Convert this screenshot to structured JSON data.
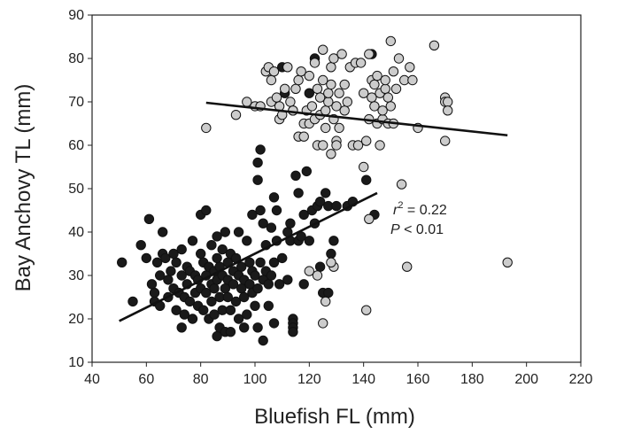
{
  "chart_data": {
    "type": "scatter",
    "title": "",
    "xlabel": "Bluefish FL (mm)",
    "ylabel": "Bay Anchovy TL (mm)",
    "xlim": [
      40,
      220
    ],
    "ylim": [
      10,
      90
    ],
    "xticks": [
      40,
      60,
      80,
      100,
      120,
      140,
      160,
      180,
      200,
      220
    ],
    "yticks": [
      10,
      20,
      30,
      40,
      50,
      60,
      70,
      80,
      90
    ],
    "grid": false,
    "legend": "none",
    "annotation": {
      "r2_label": "r",
      "r2_sup": "2",
      "r2_value": " = 0.22",
      "p_label": "P",
      "p_value": " < 0.01"
    },
    "series": [
      {
        "color": "#1a1a1a",
        "points": [
          [
            51,
            33
          ],
          [
            55,
            24
          ],
          [
            58,
            37
          ],
          [
            60,
            34
          ],
          [
            61,
            43
          ],
          [
            62,
            28
          ],
          [
            63,
            26
          ],
          [
            63,
            24
          ],
          [
            64,
            33
          ],
          [
            65,
            30
          ],
          [
            65,
            23
          ],
          [
            66,
            40
          ],
          [
            66,
            35
          ],
          [
            67,
            34
          ],
          [
            68,
            29
          ],
          [
            68,
            25
          ],
          [
            69,
            31
          ],
          [
            70,
            35
          ],
          [
            70,
            27
          ],
          [
            71,
            33
          ],
          [
            71,
            22
          ],
          [
            72,
            26
          ],
          [
            73,
            36
          ],
          [
            73,
            30
          ],
          [
            73,
            18
          ],
          [
            74,
            25
          ],
          [
            74,
            21
          ],
          [
            75,
            32
          ],
          [
            75,
            28
          ],
          [
            76,
            24
          ],
          [
            76,
            31
          ],
          [
            77,
            20
          ],
          [
            77,
            38
          ],
          [
            78,
            26
          ],
          [
            78,
            30
          ],
          [
            79,
            29
          ],
          [
            79,
            23
          ],
          [
            80,
            35
          ],
          [
            80,
            44
          ],
          [
            80,
            27
          ],
          [
            81,
            33
          ],
          [
            81,
            22
          ],
          [
            82,
            30
          ],
          [
            82,
            26
          ],
          [
            82,
            45
          ],
          [
            83,
            32
          ],
          [
            83,
            20
          ],
          [
            84,
            37
          ],
          [
            84,
            28
          ],
          [
            84,
            24
          ],
          [
            85,
            31
          ],
          [
            85,
            27
          ],
          [
            85,
            21
          ],
          [
            86,
            39
          ],
          [
            86,
            34
          ],
          [
            86,
            29
          ],
          [
            86,
            16
          ],
          [
            87,
            32
          ],
          [
            87,
            25
          ],
          [
            87,
            18
          ],
          [
            88,
            36
          ],
          [
            88,
            30
          ],
          [
            88,
            22
          ],
          [
            89,
            40
          ],
          [
            89,
            27
          ],
          [
            89,
            17
          ],
          [
            90,
            33
          ],
          [
            90,
            29
          ],
          [
            90,
            25
          ],
          [
            91,
            35
          ],
          [
            91,
            22
          ],
          [
            91,
            17
          ],
          [
            92,
            31
          ],
          [
            92,
            28
          ],
          [
            93,
            34
          ],
          [
            93,
            24
          ],
          [
            94,
            30
          ],
          [
            94,
            40
          ],
          [
            94,
            20
          ],
          [
            95,
            27
          ],
          [
            95,
            32
          ],
          [
            96,
            25
          ],
          [
            96,
            29
          ],
          [
            96,
            18
          ],
          [
            97,
            38
          ],
          [
            97,
            21
          ],
          [
            98,
            33
          ],
          [
            98,
            28
          ],
          [
            99,
            26
          ],
          [
            99,
            31
          ],
          [
            99,
            44
          ],
          [
            100,
            23
          ],
          [
            100,
            30
          ],
          [
            101,
            52
          ],
          [
            101,
            56
          ],
          [
            101,
            27
          ],
          [
            101,
            18
          ],
          [
            102,
            59
          ],
          [
            102,
            45
          ],
          [
            102,
            33
          ],
          [
            103,
            29
          ],
          [
            103,
            15
          ],
          [
            103,
            42
          ],
          [
            104,
            31
          ],
          [
            104,
            37
          ],
          [
            105,
            28
          ],
          [
            105,
            23
          ],
          [
            106,
            41
          ],
          [
            106,
            30
          ],
          [
            107,
            48
          ],
          [
            107,
            33
          ],
          [
            107,
            19
          ],
          [
            108,
            45
          ],
          [
            108,
            38
          ],
          [
            109,
            28
          ],
          [
            110,
            78
          ],
          [
            110,
            34
          ],
          [
            111,
            72
          ],
          [
            112,
            40
          ],
          [
            112,
            29
          ],
          [
            113,
            42
          ],
          [
            113,
            38
          ],
          [
            114,
            20
          ],
          [
            114,
            19
          ],
          [
            114,
            18
          ],
          [
            114,
            17
          ],
          [
            115,
            53
          ],
          [
            116,
            38
          ],
          [
            116,
            49
          ],
          [
            117,
            39
          ],
          [
            118,
            44
          ],
          [
            118,
            28
          ],
          [
            119,
            54
          ],
          [
            120,
            38
          ],
          [
            120,
            72
          ],
          [
            121,
            45
          ],
          [
            122,
            80
          ],
          [
            122,
            42
          ],
          [
            123,
            46
          ],
          [
            124,
            47
          ],
          [
            124,
            32
          ],
          [
            125,
            26
          ],
          [
            126,
            49
          ],
          [
            127,
            26
          ],
          [
            127,
            46
          ],
          [
            128,
            35
          ],
          [
            129,
            38
          ],
          [
            130,
            46
          ],
          [
            134,
            46
          ],
          [
            136,
            47
          ],
          [
            141,
            52
          ],
          [
            144,
            44
          ],
          [
            143,
            81
          ]
        ]
      },
      {
        "color": "#cccccc",
        "points": [
          [
            82,
            64
          ],
          [
            93,
            67
          ],
          [
            97,
            70
          ],
          [
            100,
            69
          ],
          [
            102,
            69
          ],
          [
            104,
            77
          ],
          [
            105,
            78
          ],
          [
            106,
            75
          ],
          [
            106,
            70
          ],
          [
            107,
            77
          ],
          [
            108,
            71
          ],
          [
            109,
            66
          ],
          [
            109,
            69
          ],
          [
            110,
            67
          ],
          [
            111,
            73
          ],
          [
            112,
            78
          ],
          [
            113,
            70
          ],
          [
            114,
            68
          ],
          [
            114,
            68
          ],
          [
            115,
            73
          ],
          [
            116,
            62
          ],
          [
            116,
            75
          ],
          [
            117,
            77
          ],
          [
            118,
            62
          ],
          [
            118,
            65
          ],
          [
            119,
            68
          ],
          [
            120,
            76
          ],
          [
            120,
            65
          ],
          [
            121,
            69
          ],
          [
            122,
            79
          ],
          [
            122,
            66
          ],
          [
            123,
            73
          ],
          [
            123,
            60
          ],
          [
            124,
            71
          ],
          [
            124,
            67
          ],
          [
            125,
            82
          ],
          [
            125,
            75
          ],
          [
            125,
            60
          ],
          [
            126,
            64
          ],
          [
            126,
            68
          ],
          [
            127,
            70
          ],
          [
            127,
            72
          ],
          [
            128,
            78
          ],
          [
            128,
            74
          ],
          [
            128,
            58
          ],
          [
            129,
            80
          ],
          [
            129,
            66
          ],
          [
            129,
            32
          ],
          [
            130,
            69
          ],
          [
            130,
            61
          ],
          [
            130,
            60
          ],
          [
            131,
            72
          ],
          [
            131,
            64
          ],
          [
            132,
            81
          ],
          [
            133,
            74
          ],
          [
            133,
            68
          ],
          [
            134,
            70
          ],
          [
            135,
            78
          ],
          [
            136,
            60
          ],
          [
            137,
            79
          ],
          [
            138,
            60
          ],
          [
            139,
            79
          ],
          [
            140,
            72
          ],
          [
            141,
            61
          ],
          [
            142,
            66
          ],
          [
            142,
            81
          ],
          [
            143,
            71
          ],
          [
            143,
            75
          ],
          [
            144,
            69
          ],
          [
            144,
            74
          ],
          [
            145,
            65
          ],
          [
            145,
            76
          ],
          [
            146,
            72
          ],
          [
            146,
            60
          ],
          [
            147,
            66
          ],
          [
            147,
            68
          ],
          [
            148,
            73
          ],
          [
            148,
            75
          ],
          [
            149,
            71
          ],
          [
            149,
            65
          ],
          [
            150,
            69
          ],
          [
            150,
            84
          ],
          [
            151,
            65
          ],
          [
            151,
            77
          ],
          [
            152,
            73
          ],
          [
            153,
            80
          ],
          [
            154,
            51
          ],
          [
            155,
            75
          ],
          [
            156,
            32
          ],
          [
            157,
            78
          ],
          [
            158,
            75
          ],
          [
            160,
            64
          ],
          [
            166,
            83
          ],
          [
            170,
            71
          ],
          [
            170,
            70
          ],
          [
            171,
            70
          ],
          [
            171,
            68
          ],
          [
            170,
            61
          ],
          [
            193,
            33
          ],
          [
            141,
            22
          ],
          [
            142,
            43
          ],
          [
            140,
            55
          ],
          [
            120,
            31
          ],
          [
            123,
            30
          ],
          [
            125,
            19
          ],
          [
            126,
            24
          ],
          [
            128,
            33
          ]
        ]
      }
    ],
    "trendlines": [
      {
        "x": [
          50,
          145
        ],
        "y": [
          19.5,
          49
        ]
      },
      {
        "x": [
          82,
          193
        ],
        "y": [
          69.8,
          62.3
        ]
      }
    ]
  }
}
